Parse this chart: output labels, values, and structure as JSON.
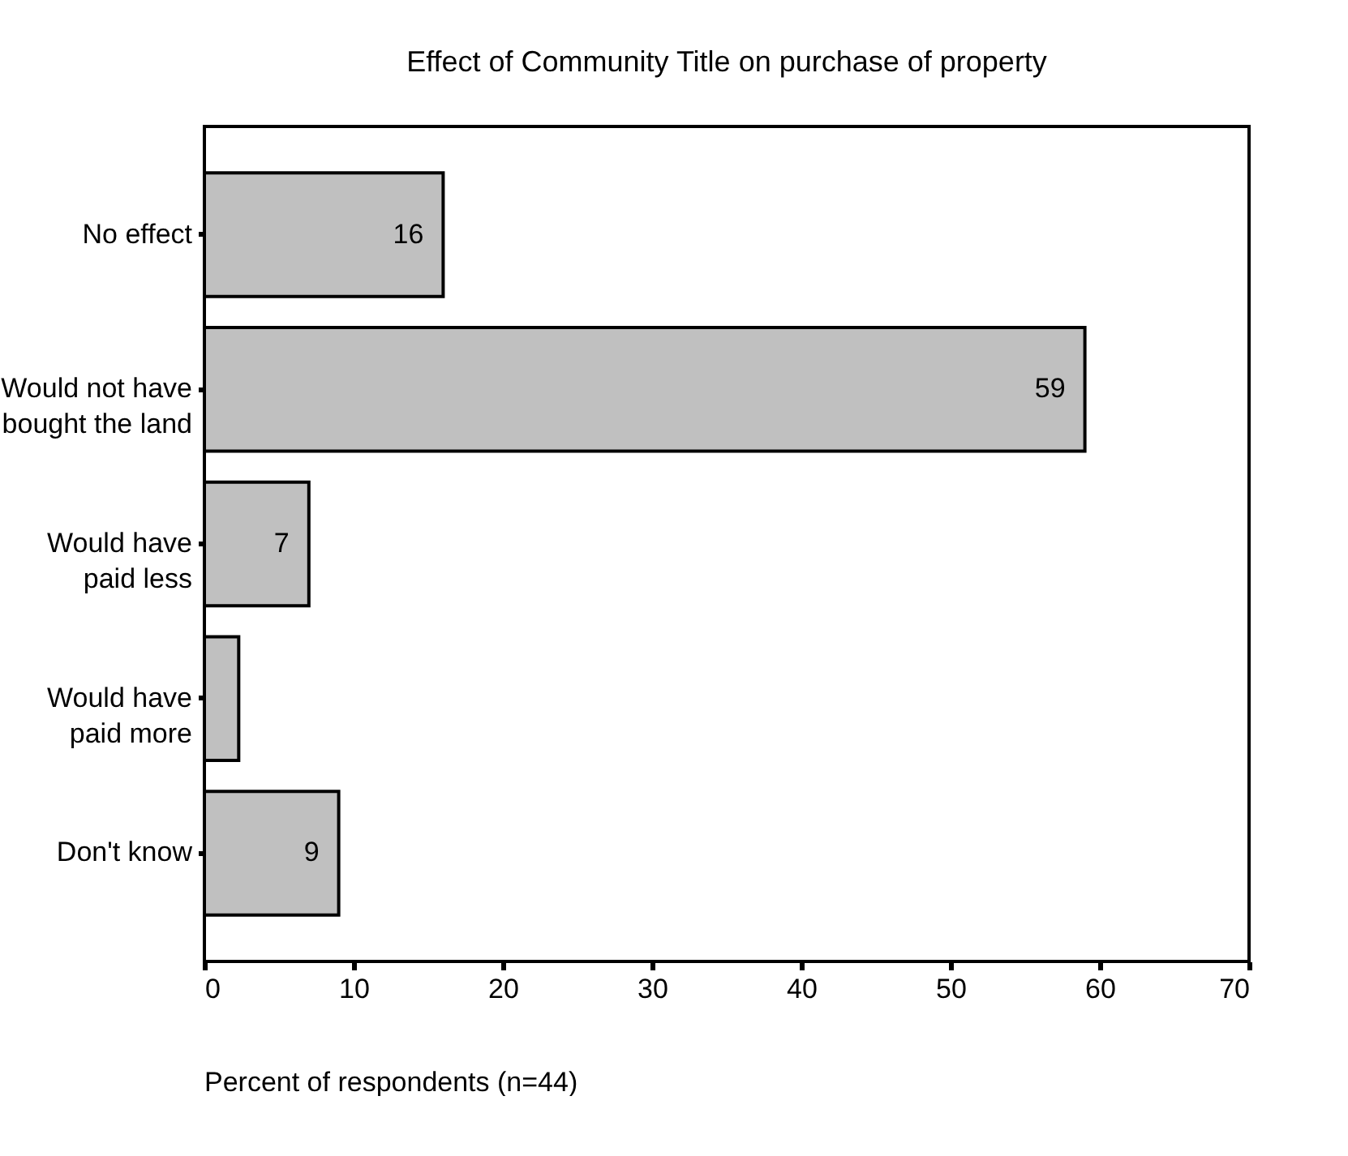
{
  "chart_data": {
    "type": "bar",
    "orientation": "horizontal",
    "title": "Effect of Community Title on purchase of property",
    "xlabel": "Percent of respondents (n=44)",
    "categories": [
      "No effect",
      "Would not have\nbought the land",
      "Would have\npaid less",
      "Would have\npaid more",
      "Don't know"
    ],
    "values": [
      16,
      59,
      7,
      2.3,
      9
    ],
    "value_labels": [
      "16",
      "59",
      "7",
      null,
      "9"
    ],
    "color": "#c0c0c0",
    "xlim": [
      0,
      70
    ],
    "xticks": [
      0,
      10,
      20,
      30,
      40,
      50,
      60,
      70
    ],
    "grid": false
  }
}
